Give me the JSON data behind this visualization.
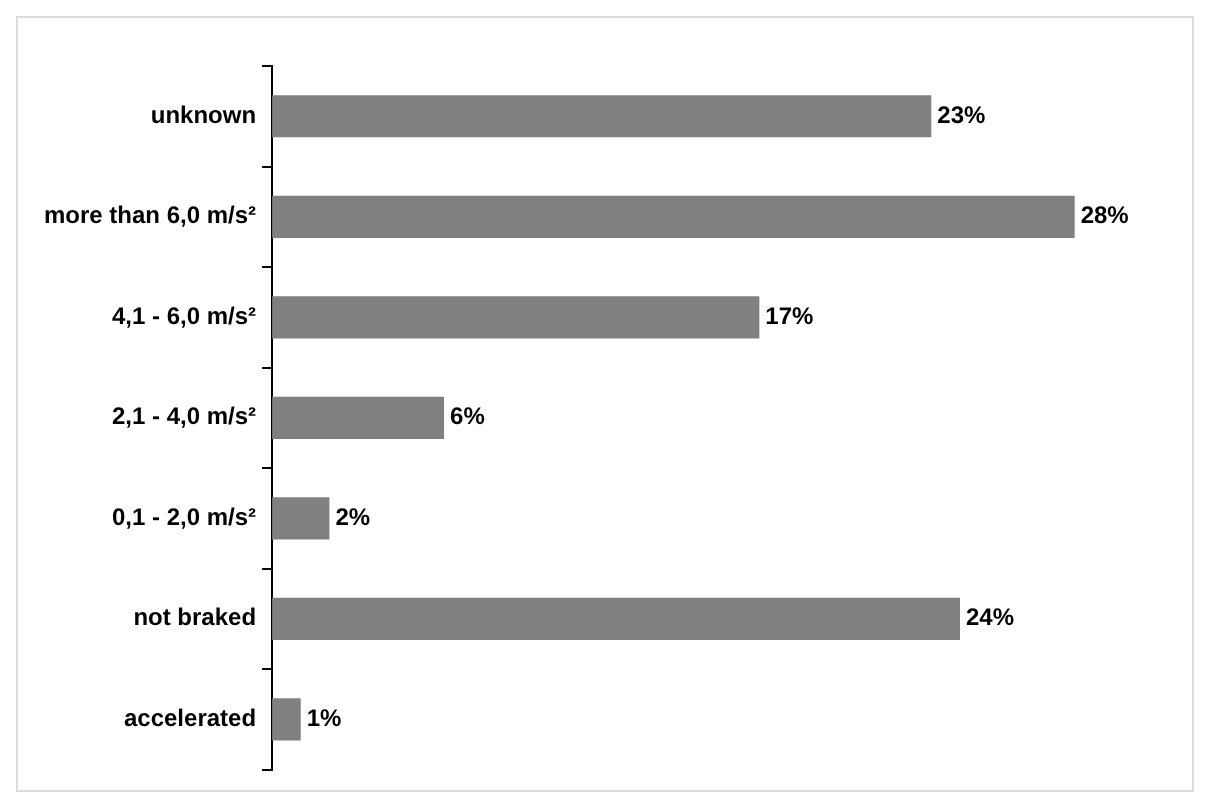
{
  "chart_data": {
    "type": "bar",
    "orientation": "horizontal",
    "tick_labels": "y",
    "grid": false,
    "legend": false,
    "color": "#808080",
    "categories": [
      "unknown",
      "more than 6,0 m/s²",
      "4,1 - 6,0 m/s²",
      "2,1 - 4,0 m/s²",
      "0,1 - 2,0 m/s²",
      "not braked",
      "accelerated"
    ],
    "values": [
      23,
      28,
      17,
      6,
      2,
      24,
      1
    ],
    "value_labels": [
      "23%",
      "28%",
      "17%",
      "6%",
      "2%",
      "24%",
      "1%"
    ]
  }
}
